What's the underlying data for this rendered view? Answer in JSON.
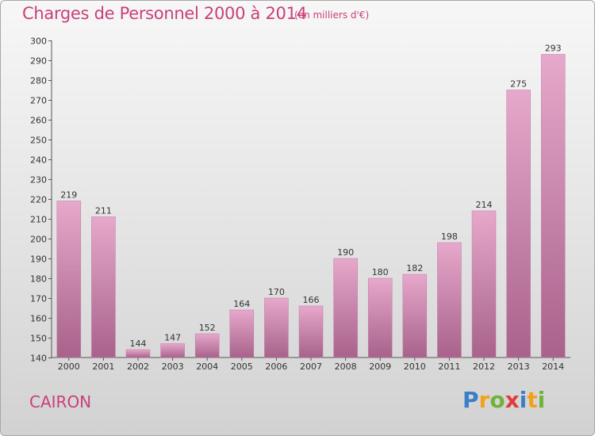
{
  "title": "Charges de Personnel 2000 à 2014",
  "subtitle": "(en milliers d'€)",
  "location": "CAIRON",
  "brand": {
    "letters": [
      "P",
      "r",
      "o",
      "x",
      "i",
      "t",
      "i"
    ],
    "colors": [
      "#3a7fc8",
      "#f2a118",
      "#6fb33a",
      "#e23b3b",
      "#3a7fc8",
      "#f2a118",
      "#6fb33a"
    ]
  },
  "colors": {
    "bar_light": "#e6a8cb",
    "bar_dark": "#a8628b",
    "title": "#c8407a",
    "text": "#333333"
  },
  "chart_data": {
    "type": "bar",
    "categories": [
      "2000",
      "2001",
      "2002",
      "2003",
      "2004",
      "2005",
      "2006",
      "2007",
      "2008",
      "2009",
      "2010",
      "2011",
      "2012",
      "2013",
      "2014"
    ],
    "values": [
      219,
      211,
      144,
      147,
      152,
      164,
      170,
      166,
      190,
      180,
      182,
      198,
      214,
      275,
      293
    ],
    "ylim": [
      140,
      300
    ],
    "yticks": [
      140,
      150,
      160,
      170,
      180,
      190,
      200,
      210,
      220,
      230,
      240,
      250,
      260,
      270,
      280,
      290,
      300
    ],
    "grid": false,
    "xlabel": "",
    "ylabel": ""
  }
}
